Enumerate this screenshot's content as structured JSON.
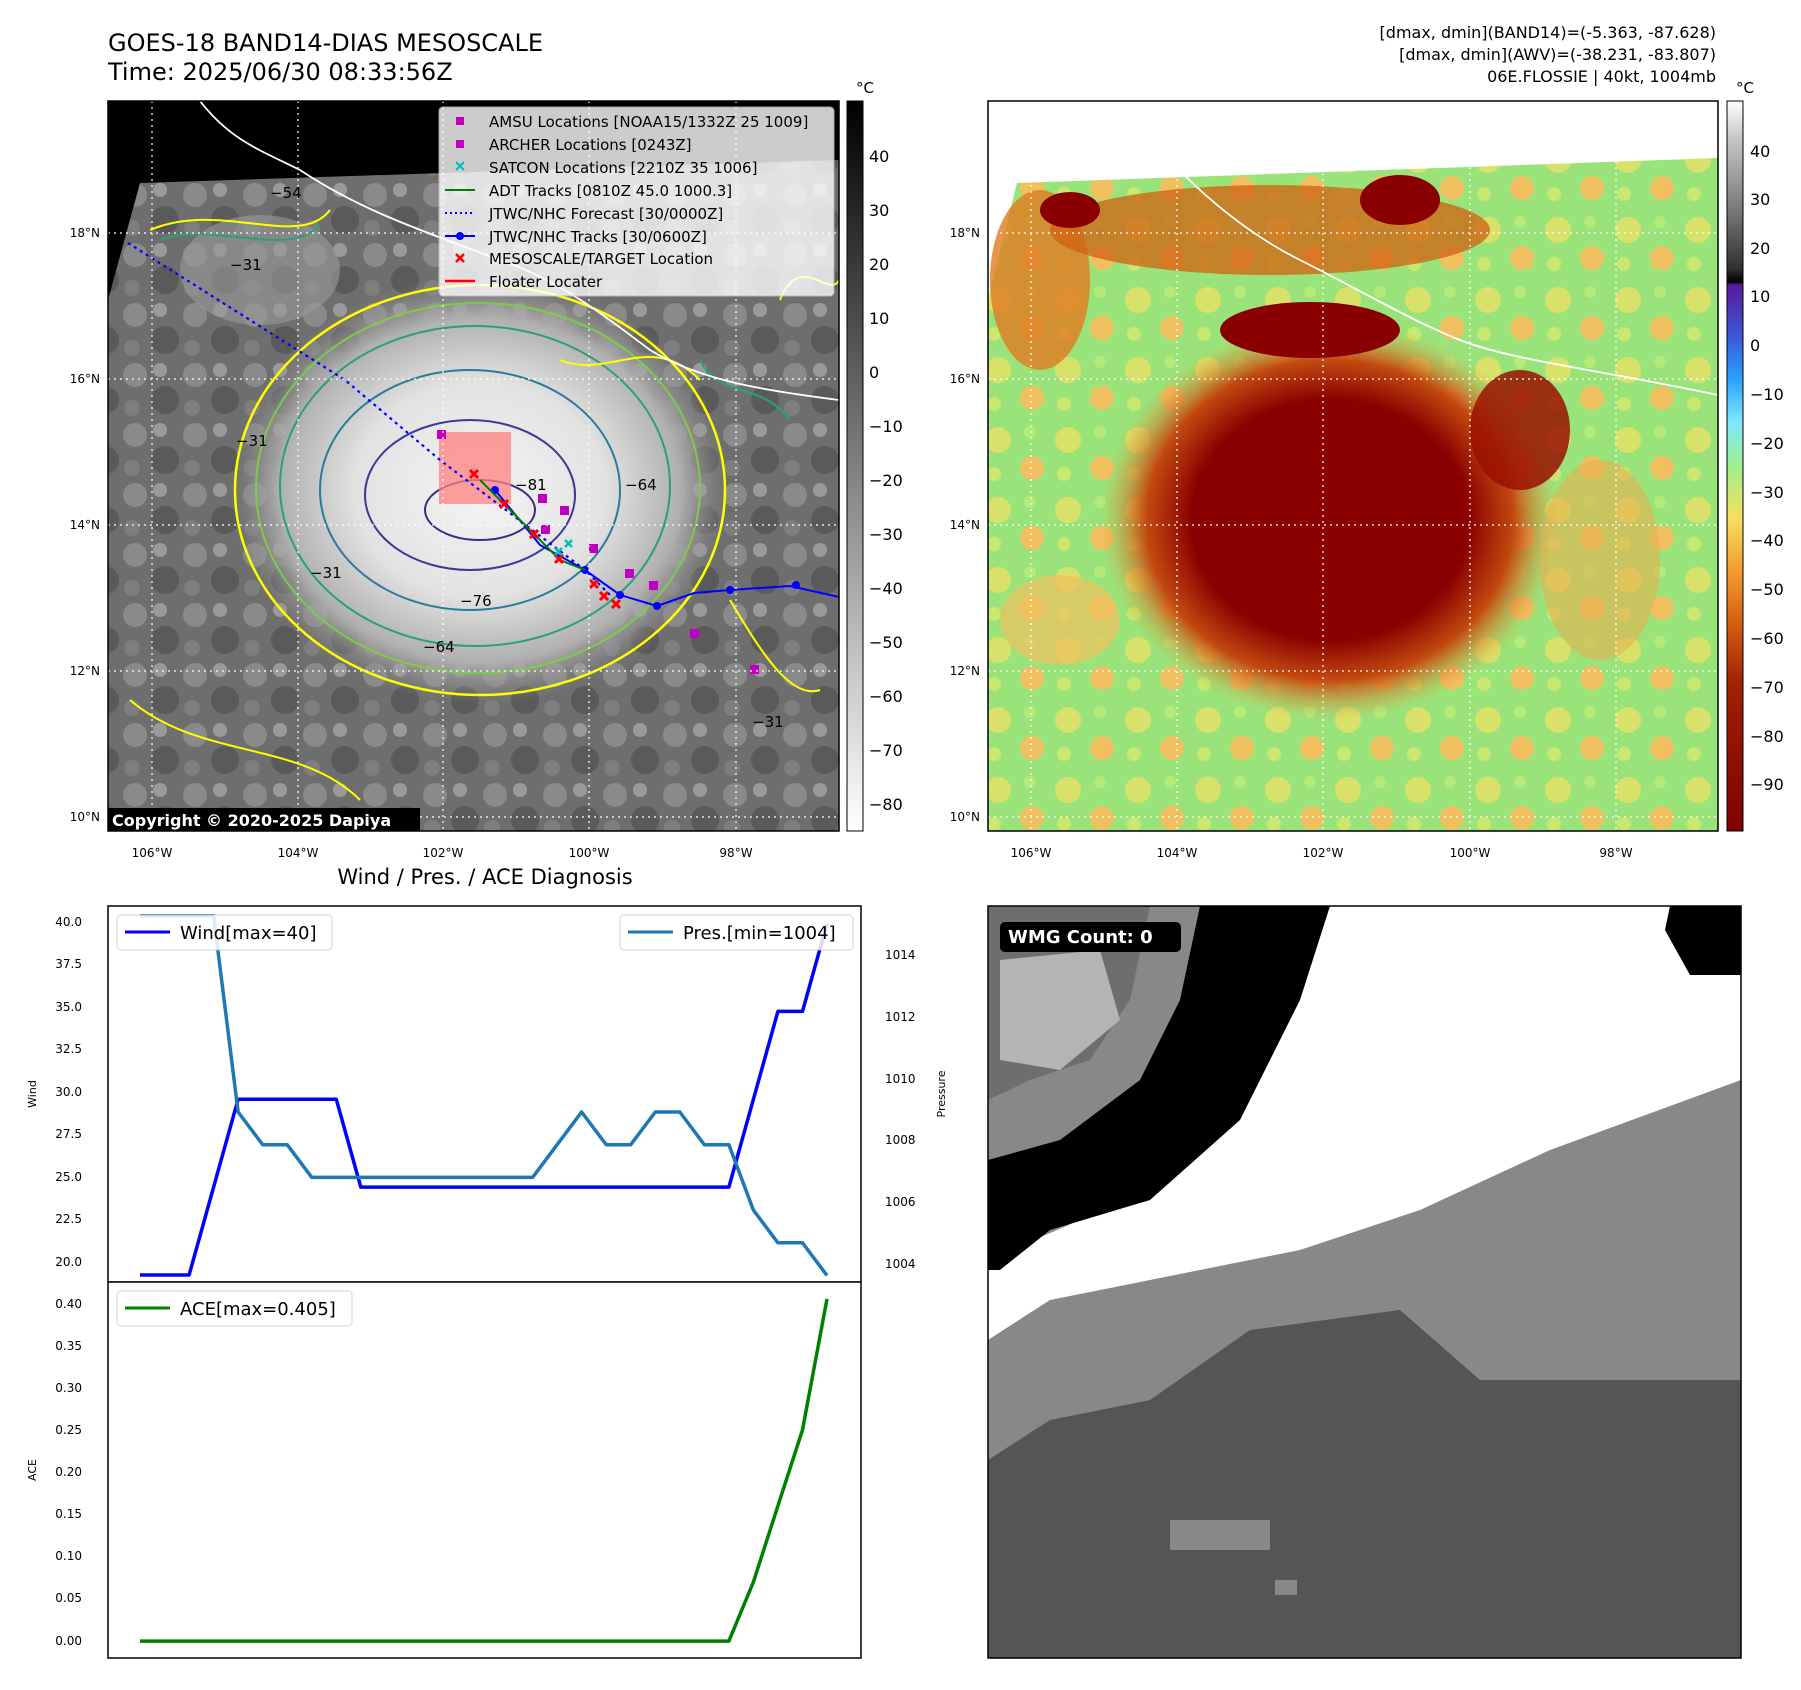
{
  "header": {
    "title_line1": "GOES-18 BAND14-DIAS MESOSCALE",
    "title_line2": "Time: 2025/06/30 08:33:56Z",
    "stats_line1": "[dmax, dmin](BAND14)=(-5.363, -87.628)",
    "stats_line2": "[dmax, dmin](AWV)=(-38.231, -83.807)",
    "stats_line3": "06E.FLOSSIE | 40kt, 1004mb"
  },
  "map": {
    "unit": "°C",
    "lon_ticks": [
      "106°W",
      "104°W",
      "102°W",
      "100°W",
      "98°W"
    ],
    "lat_ticks": [
      "18°N",
      "16°N",
      "14°N",
      "12°N",
      "10°N"
    ],
    "ir_colorbar_ticks": [
      "40",
      "30",
      "20",
      "10",
      "0",
      "−10",
      "−20",
      "−30",
      "−40",
      "−50",
      "−60",
      "−70",
      "−80"
    ],
    "awv_colorbar_ticks": [
      "40",
      "30",
      "20",
      "10",
      "0",
      "−10",
      "−20",
      "−30",
      "−40",
      "−50",
      "−60",
      "−70",
      "−80",
      "−90"
    ],
    "copyright": "Copyright © 2020-2025 Dapiya",
    "contour_labels": [
      "−54",
      "−31",
      "−31",
      "−31",
      "−81",
      "−76",
      "−64",
      "−64",
      "−31"
    ],
    "legend": [
      {
        "label": "AMSU Locations [NOAA15/1332Z 25 1009]",
        "color": "#c000c0"
      },
      {
        "label": "ARCHER Locations [0243Z]",
        "color": "#c000c0"
      },
      {
        "label": "SATCON Locations [2210Z 35 1006]",
        "color": "#00bfbf"
      },
      {
        "label": "ADT Tracks [0810Z 45.0 1000.3]",
        "color": "#008000"
      },
      {
        "label": "JTWC/NHC Forecast [30/0000Z]",
        "color": "#0000ff"
      },
      {
        "label": "JTWC/NHC Tracks [30/0600Z]",
        "color": "#0000ff"
      },
      {
        "label": "MESOSCALE/TARGET Location",
        "color": "#ff0000"
      },
      {
        "label": "Floater Locater",
        "color": "#ff0000"
      }
    ]
  },
  "diagnosis": {
    "title": "Wind / Pres. / ACE Diagnosis",
    "wind_ylabel": "Wind",
    "pres_ylabel": "Pressure",
    "ace_ylabel": "ACE",
    "wind_legend": "Wind[max=40]",
    "pres_legend": "Pres.[min=1004]",
    "ace_legend": "ACE[max=0.405]",
    "wind_ticks": [
      "40.0",
      "37.5",
      "35.0",
      "32.5",
      "30.0",
      "27.5",
      "25.0",
      "22.5",
      "20.0"
    ],
    "pres_ticks": [
      "1014",
      "1012",
      "1010",
      "1008",
      "1006",
      "1004"
    ],
    "ace_ticks": [
      "0.40",
      "0.35",
      "0.30",
      "0.25",
      "0.20",
      "0.15",
      "0.10",
      "0.05",
      "0.00"
    ]
  },
  "wmg": {
    "label": "WMG Count: 0"
  },
  "chart_data": [
    {
      "type": "line",
      "title": "Wind / Pres. / ACE Diagnosis",
      "x": [
        0,
        1,
        2,
        3,
        4,
        5,
        6,
        7,
        8,
        9,
        10,
        11,
        12,
        13,
        14,
        15,
        16,
        17,
        18,
        19,
        20,
        21,
        22,
        23,
        24,
        25,
        26,
        27,
        28
      ],
      "series": [
        {
          "name": "Wind[max=40]",
          "axis": "left",
          "color": "#0000ff",
          "values": [
            20,
            20,
            20,
            25,
            30,
            30,
            30,
            30,
            30,
            25,
            25,
            25,
            25,
            25,
            25,
            25,
            25,
            25,
            25,
            25,
            25,
            25,
            25,
            25,
            25,
            30,
            35,
            35,
            40
          ]
        },
        {
          "name": "Pres.[min=1004]",
          "axis": "right",
          "color": "#1f77b4",
          "values": [
            1015,
            1015,
            1015,
            1015,
            1009,
            1008,
            1008,
            1007,
            1007,
            1007,
            1007,
            1007,
            1007,
            1007,
            1007,
            1007,
            1007,
            1008,
            1009,
            1008,
            1008,
            1009,
            1009,
            1008,
            1008,
            1006,
            1005,
            1005,
            1004
          ]
        }
      ],
      "ylabel_left": "Wind",
      "ylim_left": [
        19.6,
        41
      ],
      "ylabel_right": "Pressure",
      "ylim_right": [
        1003.8,
        1015.3
      ]
    },
    {
      "type": "line",
      "x": [
        0,
        1,
        2,
        3,
        4,
        5,
        6,
        7,
        8,
        9,
        10,
        11,
        12,
        13,
        14,
        15,
        16,
        17,
        18,
        19,
        20,
        21,
        22,
        23,
        24,
        25,
        26,
        27,
        28
      ],
      "series": [
        {
          "name": "ACE[max=0.405]",
          "color": "#008000",
          "values": [
            0,
            0,
            0,
            0,
            0,
            0,
            0,
            0,
            0,
            0,
            0,
            0,
            0,
            0,
            0,
            0,
            0,
            0,
            0,
            0,
            0,
            0,
            0,
            0,
            0,
            0.07,
            0.16,
            0.25,
            0.405
          ]
        }
      ],
      "ylabel": "ACE",
      "ylim": [
        -0.02,
        0.425
      ]
    }
  ]
}
